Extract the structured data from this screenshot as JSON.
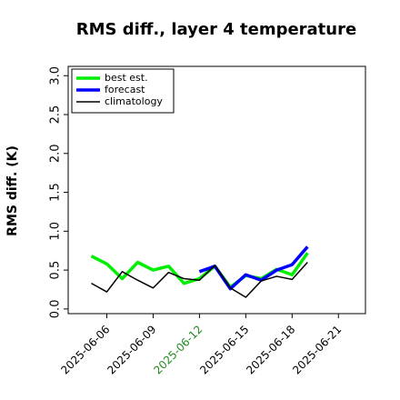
{
  "chart_data": {
    "type": "line",
    "title": "RMS diff., layer 4 temperature",
    "ylabel": "RMS diff. (K)",
    "x": [
      "2025-06-05",
      "2025-06-06",
      "2025-06-07",
      "2025-06-08",
      "2025-06-09",
      "2025-06-10",
      "2025-06-11",
      "2025-06-12",
      "2025-06-13",
      "2025-06-14",
      "2025-06-15",
      "2025-06-16",
      "2025-06-17",
      "2025-06-18",
      "2025-06-19"
    ],
    "series": [
      {
        "name": "best est.",
        "color": "#00ee00",
        "values": [
          0.68,
          0.58,
          0.39,
          0.6,
          0.5,
          0.55,
          0.33,
          0.39,
          0.55,
          0.28,
          0.43,
          0.39,
          0.51,
          0.44,
          0.72
        ]
      },
      {
        "name": "forecast",
        "color": "#0000ff",
        "values": [
          null,
          null,
          null,
          null,
          null,
          null,
          null,
          0.48,
          0.55,
          0.26,
          0.44,
          0.37,
          0.5,
          0.57,
          0.8
        ]
      },
      {
        "name": "climatology",
        "color": "#000000",
        "values": [
          0.33,
          0.22,
          0.48,
          0.37,
          0.27,
          0.47,
          0.39,
          0.37,
          0.56,
          0.27,
          0.15,
          0.36,
          0.42,
          0.38,
          0.6
        ]
      }
    ],
    "xlim": [
      "2025-06-03T12:00",
      "2025-06-22T18:00"
    ],
    "xticks": [
      "2025-06-06",
      "2025-06-09",
      {
        "value": "2025-06-12",
        "label": "2025-06-12",
        "color": "#228b22"
      },
      "2025-06-15",
      "2025-06-18",
      "2025-06-21"
    ],
    "ylim": [
      -0.06,
      3.12
    ],
    "yticks": [
      {
        "value": 0,
        "label": "0.0"
      },
      {
        "value": 0.5,
        "label": "0.5"
      },
      {
        "value": 1,
        "label": "1.0"
      },
      {
        "value": 1.5,
        "label": "1.5"
      },
      {
        "value": 2,
        "label": "2.0"
      },
      {
        "value": 2.5,
        "label": "2.5"
      },
      {
        "value": 3,
        "label": "3.0"
      }
    ],
    "legend": "upper left"
  }
}
